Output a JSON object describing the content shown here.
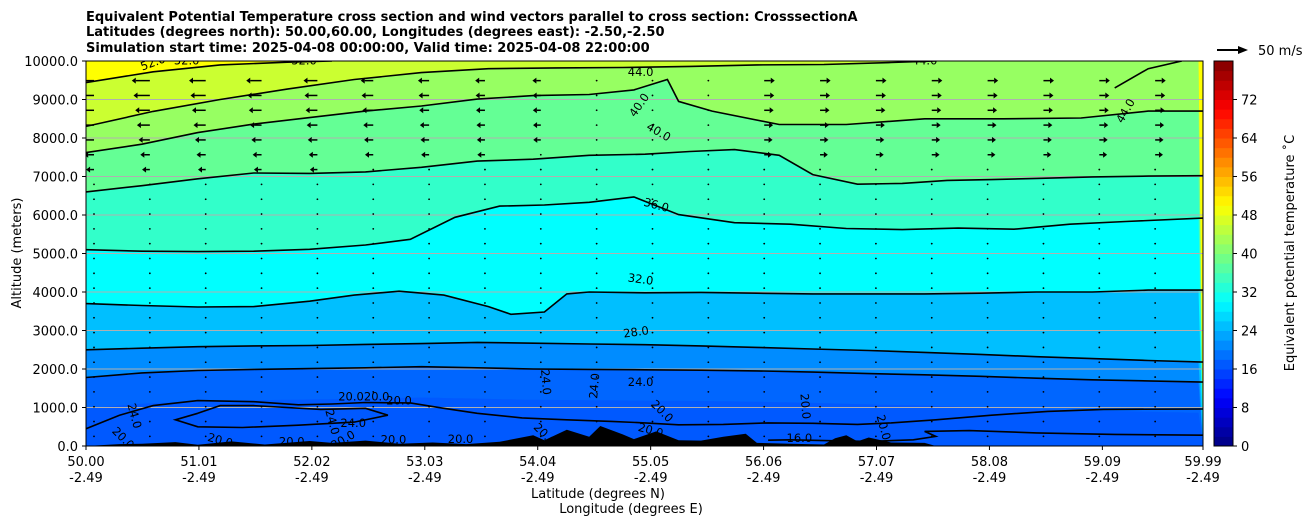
{
  "chart_data": {
    "type": "heatmap",
    "title_lines": [
      "Equivalent Potential Temperature cross section and wind vectors parallel to cross section: CrosssectionA",
      "Latitudes (degrees north): 50.00,60.00, Longitudes (degrees east): -2.50,-2.50",
      "Simulation start time: 2025-04-08 00:00:00, Valid time: 2025-04-08 22:00:00"
    ],
    "ylabel": "Altitude (meters)",
    "xlabel_primary": "Latitude (degrees N)",
    "xlabel_secondary": "Longitude (degrees E)",
    "ylim": [
      0,
      10000
    ],
    "xlim": [
      50.0,
      59.99
    ],
    "y_ticks": [
      "0.0",
      "1000.0",
      "2000.0",
      "3000.0",
      "4000.0",
      "5000.0",
      "6000.0",
      "7000.0",
      "8000.0",
      "9000.0",
      "10000.0"
    ],
    "y_tick_values": [
      0,
      1000,
      2000,
      3000,
      4000,
      5000,
      6000,
      7000,
      8000,
      9000,
      10000
    ],
    "x_ticks": [
      {
        "lat": "50.00",
        "lon": "-2.49",
        "value": 50.0
      },
      {
        "lat": "51.01",
        "lon": "-2.49",
        "value": 51.01
      },
      {
        "lat": "52.02",
        "lon": "-2.49",
        "value": 52.02
      },
      {
        "lat": "53.03",
        "lon": "-2.49",
        "value": 53.03
      },
      {
        "lat": "54.04",
        "lon": "-2.49",
        "value": 54.04
      },
      {
        "lat": "55.05",
        "lon": "-2.49",
        "value": 55.05
      },
      {
        "lat": "56.06",
        "lon": "-2.49",
        "value": 56.06
      },
      {
        "lat": "57.07",
        "lon": "-2.49",
        "value": 57.07
      },
      {
        "lat": "58.08",
        "lon": "-2.49",
        "value": 58.08
      },
      {
        "lat": "59.09",
        "lon": "-2.49",
        "value": 59.09
      },
      {
        "lat": "59.99",
        "lon": "-2.49",
        "value": 59.99
      }
    ],
    "colorbar": {
      "label": "Equivalent potential temperature $^\\circ$C",
      "label_display": "Equivalent potential temperature ˚C",
      "min": 0,
      "max": 80,
      "step": 2,
      "ticks": [
        "0",
        "8",
        "16",
        "24",
        "32",
        "40",
        "48",
        "56",
        "64",
        "72"
      ],
      "tick_values": [
        0,
        8,
        16,
        24,
        32,
        40,
        48,
        56,
        64,
        72
      ]
    },
    "wind_key": {
      "label": "50 m/s",
      "value": 50
    },
    "contours": [
      {
        "level": 16,
        "points": [
          [
            56.1,
            150
          ],
          [
            56.3,
            160
          ],
          [
            56.6,
            140
          ],
          [
            57.0,
            120
          ],
          [
            57.4,
            160
          ],
          [
            57.6,
            250
          ],
          [
            57.5,
            380
          ],
          [
            57.9,
            400
          ],
          [
            58.5,
            340
          ],
          [
            59.2,
            300
          ],
          [
            59.99,
            280
          ]
        ]
      },
      {
        "level": 20,
        "points": [
          [
            50.0,
            1780
          ],
          [
            50.5,
            1900
          ],
          [
            51.0,
            1960
          ],
          [
            51.5,
            1990
          ],
          [
            52.0,
            2010
          ],
          [
            52.5,
            2030
          ],
          [
            53.0,
            2060
          ],
          [
            53.5,
            2030
          ],
          [
            54.0,
            2000
          ],
          [
            54.5,
            1990
          ],
          [
            55.0,
            1980
          ],
          [
            55.5,
            1970
          ],
          [
            56.0,
            1950
          ],
          [
            56.5,
            1920
          ],
          [
            57.0,
            1880
          ],
          [
            57.5,
            1850
          ],
          [
            58.0,
            1810
          ],
          [
            58.5,
            1760
          ],
          [
            59.0,
            1720
          ],
          [
            59.5,
            1690
          ],
          [
            59.99,
            1660
          ]
        ]
      },
      {
        "level": 20,
        "points": [
          [
            50.0,
            450
          ],
          [
            50.3,
            800
          ],
          [
            50.6,
            1050
          ],
          [
            51.0,
            1180
          ],
          [
            51.5,
            1150
          ],
          [
            51.9,
            1070
          ],
          [
            52.2,
            1090
          ],
          [
            52.5,
            1130
          ],
          [
            52.9,
            1120
          ],
          [
            53.2,
            980
          ],
          [
            53.5,
            850
          ],
          [
            53.9,
            730
          ],
          [
            54.3,
            680
          ],
          [
            54.7,
            640
          ],
          [
            55.0,
            600
          ],
          [
            55.3,
            550
          ],
          [
            55.7,
            560
          ],
          [
            56.1,
            600
          ],
          [
            56.5,
            590
          ],
          [
            56.9,
            560
          ],
          [
            57.2,
            600
          ],
          [
            57.6,
            680
          ],
          [
            58.1,
            800
          ],
          [
            58.6,
            900
          ],
          [
            59.1,
            950
          ],
          [
            59.99,
            960
          ]
        ]
      },
      {
        "level": 24,
        "points": [
          [
            50.0,
            2500
          ],
          [
            50.5,
            2540
          ],
          [
            51.0,
            2580
          ],
          [
            51.5,
            2600
          ],
          [
            52.0,
            2610
          ],
          [
            52.5,
            2640
          ],
          [
            53.0,
            2660
          ],
          [
            53.5,
            2690
          ],
          [
            54.0,
            2670
          ],
          [
            54.5,
            2650
          ],
          [
            55.0,
            2630
          ],
          [
            55.5,
            2600
          ],
          [
            56.0,
            2560
          ],
          [
            56.5,
            2520
          ],
          [
            57.0,
            2480
          ],
          [
            57.5,
            2430
          ],
          [
            58.0,
            2380
          ],
          [
            58.5,
            2320
          ],
          [
            59.0,
            2270
          ],
          [
            59.5,
            2220
          ],
          [
            59.99,
            2180
          ]
        ]
      },
      {
        "level": 24,
        "points": [
          [
            51.0,
            850
          ],
          [
            51.2,
            1050
          ],
          [
            51.5,
            1050
          ],
          [
            52.1,
            950
          ],
          [
            52.5,
            980
          ],
          [
            52.7,
            800
          ],
          [
            52.4,
            620
          ],
          [
            51.9,
            540
          ],
          [
            51.4,
            480
          ],
          [
            51.0,
            500
          ],
          [
            50.8,
            680
          ],
          [
            51.0,
            850
          ]
        ]
      },
      {
        "level": 28,
        "points": [
          [
            50.0,
            3700
          ],
          [
            50.5,
            3650
          ],
          [
            51.0,
            3610
          ],
          [
            51.5,
            3620
          ],
          [
            52.0,
            3760
          ],
          [
            52.4,
            3920
          ],
          [
            52.8,
            4020
          ],
          [
            53.2,
            3920
          ],
          [
            53.6,
            3620
          ],
          [
            53.8,
            3420
          ],
          [
            54.1,
            3480
          ],
          [
            54.3,
            3950
          ],
          [
            54.5,
            4000
          ],
          [
            55.0,
            3980
          ],
          [
            55.5,
            3990
          ],
          [
            56.0,
            3970
          ],
          [
            56.5,
            3950
          ],
          [
            57.0,
            3950
          ],
          [
            57.5,
            3950
          ],
          [
            58.0,
            3970
          ],
          [
            58.5,
            4000
          ],
          [
            59.0,
            4000
          ],
          [
            59.5,
            4050
          ],
          [
            59.99,
            4050
          ]
        ]
      },
      {
        "level": 32,
        "points": [
          [
            50.0,
            5100
          ],
          [
            50.5,
            5060
          ],
          [
            51.0,
            5050
          ],
          [
            51.5,
            5060
          ],
          [
            52.0,
            5110
          ],
          [
            52.5,
            5220
          ],
          [
            52.9,
            5370
          ],
          [
            53.3,
            5940
          ],
          [
            53.7,
            6230
          ],
          [
            54.1,
            6260
          ],
          [
            54.5,
            6330
          ],
          [
            54.9,
            6470
          ],
          [
            55.3,
            6010
          ],
          [
            55.8,
            5800
          ],
          [
            56.3,
            5760
          ],
          [
            56.8,
            5650
          ],
          [
            57.3,
            5620
          ],
          [
            57.8,
            5660
          ],
          [
            58.3,
            5630
          ],
          [
            58.8,
            5760
          ],
          [
            59.3,
            5830
          ],
          [
            59.99,
            5920
          ]
        ]
      },
      {
        "level": 36,
        "points": [
          [
            50.0,
            6600
          ],
          [
            50.5,
            6760
          ],
          [
            51.0,
            6940
          ],
          [
            51.5,
            7090
          ],
          [
            52.0,
            7080
          ],
          [
            52.5,
            7120
          ],
          [
            53.0,
            7240
          ],
          [
            53.5,
            7400
          ],
          [
            54.0,
            7450
          ],
          [
            54.5,
            7550
          ],
          [
            55.0,
            7580
          ],
          [
            55.4,
            7650
          ],
          [
            55.8,
            7700
          ],
          [
            56.2,
            7550
          ],
          [
            56.5,
            7050
          ],
          [
            56.9,
            6800
          ],
          [
            57.3,
            6820
          ],
          [
            57.7,
            6900
          ],
          [
            58.1,
            6920
          ],
          [
            58.5,
            6950
          ],
          [
            59.0,
            6990
          ],
          [
            59.5,
            7010
          ],
          [
            59.99,
            7020
          ]
        ]
      },
      {
        "level": 40,
        "points": [
          [
            50.0,
            7620
          ],
          [
            50.5,
            7840
          ],
          [
            51.0,
            8140
          ],
          [
            51.5,
            8360
          ],
          [
            52.0,
            8530
          ],
          [
            52.5,
            8700
          ],
          [
            53.0,
            8830
          ],
          [
            53.5,
            9010
          ],
          [
            54.0,
            9100
          ],
          [
            54.5,
            9130
          ],
          [
            54.9,
            9250
          ],
          [
            55.2,
            9520
          ],
          [
            55.3,
            8950
          ],
          [
            55.6,
            8700
          ],
          [
            56.2,
            8350
          ],
          [
            56.8,
            8350
          ],
          [
            57.5,
            8500
          ],
          [
            58.2,
            8500
          ],
          [
            58.9,
            8520
          ],
          [
            59.5,
            8700
          ],
          [
            59.99,
            8700
          ]
        ]
      },
      {
        "level": 44,
        "points": [
          [
            50.0,
            8300
          ],
          [
            50.6,
            8690
          ],
          [
            51.2,
            9000
          ],
          [
            51.8,
            9270
          ],
          [
            52.4,
            9520
          ],
          [
            53.0,
            9700
          ],
          [
            53.6,
            9800
          ],
          [
            54.2,
            9820
          ],
          [
            54.8,
            9830
          ],
          [
            55.4,
            9860
          ],
          [
            56.0,
            9900
          ],
          [
            56.6,
            9910
          ],
          [
            57.2,
            9960
          ],
          [
            57.6,
            10000
          ]
        ]
      },
      {
        "level": 44,
        "points": [
          [
            59.2,
            9300
          ],
          [
            59.5,
            9800
          ],
          [
            59.8,
            10000
          ]
        ]
      },
      {
        "level": 48,
        "points": [
          [
            50.0,
            9440
          ],
          [
            50.6,
            9720
          ],
          [
            51.2,
            9900
          ],
          [
            51.8,
            9970
          ],
          [
            52.2,
            10000
          ]
        ]
      }
    ],
    "contour_labels": [
      {
        "text": "52.0",
        "x": 50.6,
        "y": 9950,
        "rot": -20
      },
      {
        "text": "52.0",
        "x": 50.9,
        "y": 10000,
        "rot": 0
      },
      {
        "text": "52.0",
        "x": 51.95,
        "y": 10000,
        "rot": 0
      },
      {
        "text": "44.0",
        "x": 54.96,
        "y": 9700,
        "rot": 0
      },
      {
        "text": "40.0",
        "x": 54.95,
        "y": 8850,
        "rot": -55
      },
      {
        "text": "40.0",
        "x": 55.12,
        "y": 8150,
        "rot": 30
      },
      {
        "text": "44.0",
        "x": 57.5,
        "y": 10000,
        "rot": 0
      },
      {
        "text": "44.0",
        "x": 59.3,
        "y": 8700,
        "rot": -60
      },
      {
        "text": "36.0",
        "x": 55.1,
        "y": 6250,
        "rot": 15
      },
      {
        "text": "32.0",
        "x": 54.96,
        "y": 4320,
        "rot": 8
      },
      {
        "text": "28.0",
        "x": 54.92,
        "y": 2950,
        "rot": -8
      },
      {
        "text": "24.0",
        "x": 54.11,
        "y": 1660,
        "rot": 85
      },
      {
        "text": "24.0",
        "x": 54.55,
        "y": 1560,
        "rot": -85
      },
      {
        "text": "24.0",
        "x": 54.96,
        "y": 1650,
        "rot": 0
      },
      {
        "text": "20.0",
        "x": 52.37,
        "y": 1270,
        "rot": 0
      },
      {
        "text": "20.0",
        "x": 52.6,
        "y": 1270,
        "rot": 0
      },
      {
        "text": "20.0",
        "x": 52.8,
        "y": 1170,
        "rot": 0
      },
      {
        "text": "24.0",
        "x": 52.39,
        "y": 590,
        "rot": 0
      },
      {
        "text": "24.0",
        "x": 52.2,
        "y": 620,
        "rot": 75
      },
      {
        "text": "24.0",
        "x": 50.43,
        "y": 780,
        "rot": 75
      },
      {
        "text": "20.0",
        "x": 50.33,
        "y": 200,
        "rot": 45
      },
      {
        "text": "20.0",
        "x": 51.2,
        "y": 140,
        "rot": 15
      },
      {
        "text": "20.0",
        "x": 51.84,
        "y": 100,
        "rot": 0
      },
      {
        "text": "20.0",
        "x": 52.3,
        "y": 150,
        "rot": -30
      },
      {
        "text": "20.0",
        "x": 52.75,
        "y": 150,
        "rot": 0
      },
      {
        "text": "20.0",
        "x": 53.35,
        "y": 170,
        "rot": 0
      },
      {
        "text": "20.0",
        "x": 54.1,
        "y": 300,
        "rot": 45
      },
      {
        "text": "20.0",
        "x": 55.15,
        "y": 900,
        "rot": 45
      },
      {
        "text": "20.0",
        "x": 55.05,
        "y": 400,
        "rot": 15
      },
      {
        "text": "20.0",
        "x": 56.43,
        "y": 1030,
        "rot": 85
      },
      {
        "text": "20.0",
        "x": 57.13,
        "y": 480,
        "rot": 75
      },
      {
        "text": "16.0",
        "x": 56.38,
        "y": 200,
        "rot": 0
      }
    ]
  },
  "colors": {
    "contour_line": "#000000",
    "terrain": "#000000",
    "grid": "#b0b0b0",
    "colormap": [
      "#00007f",
      "#0000ff",
      "#007fff",
      "#00ffff",
      "#7dff7a",
      "#ffff00",
      "#ff7f00",
      "#ff0000",
      "#7f0000"
    ]
  }
}
